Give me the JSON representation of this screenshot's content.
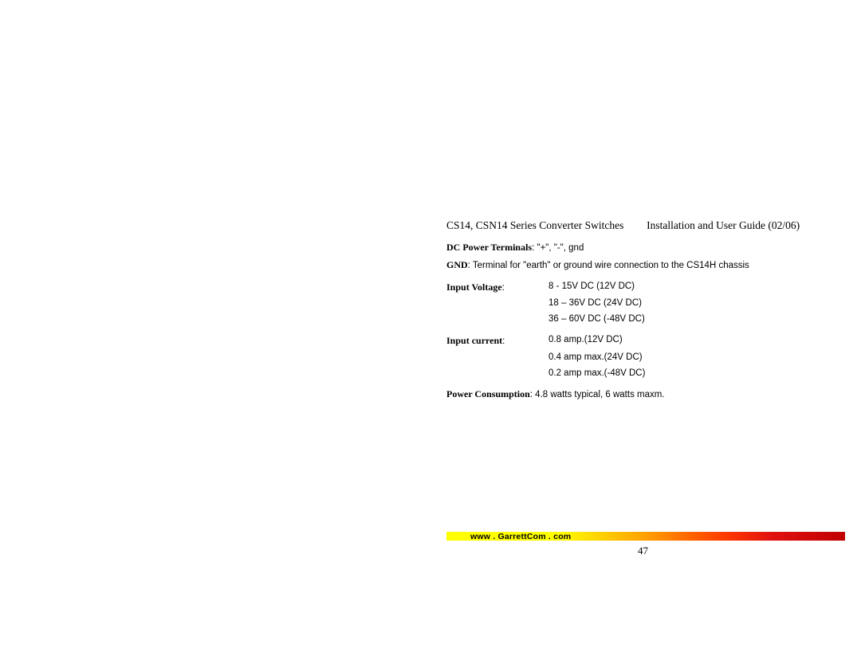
{
  "header": {
    "left": "CS14, CSN14 Series Converter Switches",
    "right": "Installation and User Guide (02/06)"
  },
  "terminals": {
    "label": "DC Power Terminals",
    "value": ": \"+\", \"-\", gnd"
  },
  "gnd": {
    "label": "GND",
    "value": ":  Terminal for \"earth\" or ground wire connection to the CS14H chassis"
  },
  "voltage": {
    "label": "Input Voltage",
    "colon": ":",
    "v1": "8 - 15V DC (12V DC)",
    "v2": "18 – 36V DC (24V DC)",
    "v3": "36 – 60V DC (-48V DC)"
  },
  "current": {
    "label": "Input current",
    "colon": ":",
    "v1": "0.8 amp.(12V DC)",
    "v2": "0.4 amp max.(24V DC)",
    "v3": "0.2 amp max.(-48V DC)"
  },
  "power": {
    "label": "Power Consumption",
    "value": ": 4.8 watts typical, 6 watts maxm."
  },
  "footer": {
    "url": "www . GarrettCom . com",
    "page": "47"
  },
  "colors": {
    "text": "#000000",
    "background": "#ffffff"
  }
}
